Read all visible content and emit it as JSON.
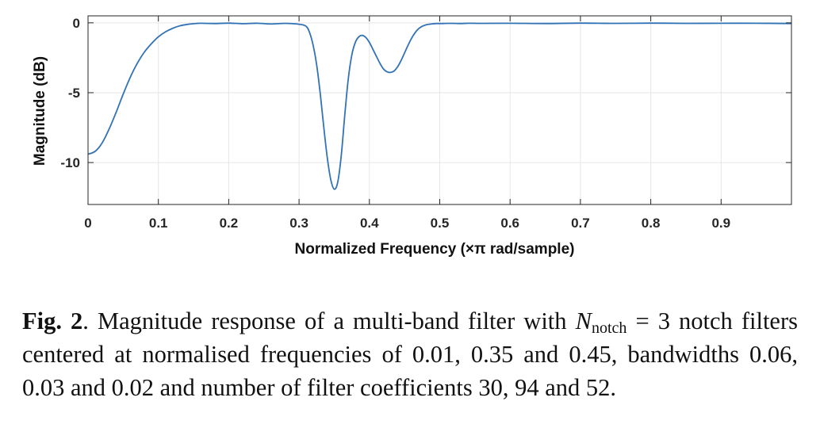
{
  "chart_data": {
    "type": "line",
    "title": "",
    "xlabel": "Normalized Frequency (×π rad/sample)",
    "ylabel": "Magnitude (dB)",
    "xlim": [
      0,
      1
    ],
    "ylim": [
      -13,
      0.5
    ],
    "xticks": [
      0,
      0.1,
      0.2,
      0.3,
      0.4,
      0.5,
      0.6,
      0.7,
      0.8,
      0.9
    ],
    "xtick_labels": [
      "0",
      "0.1",
      "0.2",
      "0.3",
      "0.4",
      "0.5",
      "0.6",
      "0.7",
      "0.8",
      "0.9"
    ],
    "yticks": [
      0,
      -5,
      -10
    ],
    "ytick_labels": [
      "0",
      "-5",
      "-10"
    ],
    "grid": true,
    "line_color": "#3272b6",
    "series": [
      {
        "x": [
          0,
          0.01,
          0.02,
          0.03,
          0.04,
          0.05,
          0.06,
          0.07,
          0.08,
          0.09,
          0.1,
          0.11,
          0.12,
          0.13,
          0.14,
          0.15,
          0.16,
          0.18,
          0.2,
          0.22,
          0.24,
          0.26,
          0.28,
          0.3,
          0.31,
          0.315,
          0.32,
          0.325,
          0.33,
          0.335,
          0.34,
          0.345,
          0.35,
          0.355,
          0.36,
          0.365,
          0.37,
          0.375,
          0.38,
          0.385,
          0.39,
          0.395,
          0.4,
          0.405,
          0.41,
          0.415,
          0.42,
          0.425,
          0.43,
          0.435,
          0.44,
          0.445,
          0.45,
          0.455,
          0.46,
          0.465,
          0.47,
          0.475,
          0.48,
          0.485,
          0.49,
          0.495,
          0.5,
          0.505,
          0.51,
          0.52,
          0.53,
          0.54,
          0.56,
          0.6,
          0.65,
          0.7,
          0.75,
          0.8,
          0.85,
          0.9,
          0.95,
          1.0
        ],
        "y": [
          -9.4,
          -9.2,
          -8.6,
          -7.6,
          -6.4,
          -5.1,
          -3.9,
          -2.9,
          -2.1,
          -1.5,
          -1.0,
          -0.65,
          -0.4,
          -0.22,
          -0.12,
          -0.06,
          -0.03,
          -0.05,
          -0.02,
          -0.06,
          -0.03,
          -0.08,
          -0.04,
          -0.1,
          -0.25,
          -0.7,
          -1.6,
          -3.0,
          -5.0,
          -7.4,
          -9.6,
          -11.2,
          -11.9,
          -11.4,
          -9.5,
          -6.6,
          -4.0,
          -2.3,
          -1.4,
          -1.0,
          -0.9,
          -1.05,
          -1.4,
          -1.9,
          -2.4,
          -2.9,
          -3.3,
          -3.5,
          -3.55,
          -3.45,
          -3.15,
          -2.7,
          -2.15,
          -1.6,
          -1.1,
          -0.7,
          -0.42,
          -0.25,
          -0.15,
          -0.1,
          -0.07,
          -0.05,
          -0.05,
          -0.05,
          -0.04,
          -0.04,
          -0.05,
          -0.03,
          -0.04,
          -0.03,
          -0.05,
          -0.02,
          -0.04,
          -0.02,
          -0.04,
          -0.03,
          -0.03,
          -0.05
        ]
      }
    ]
  },
  "caption": {
    "label": "Fig. 2",
    "text_1": ". Magnitude response of a multi-band filter with ",
    "math_symbol": "N",
    "math_subscript": "notch",
    "text_2": " = 3 notch filters centered at normalised frequencies of 0.01, 0.35 and 0.45, bandwidths 0.06, 0.03 and 0.02 and number of filter coefficients 30, 94 and 52."
  }
}
